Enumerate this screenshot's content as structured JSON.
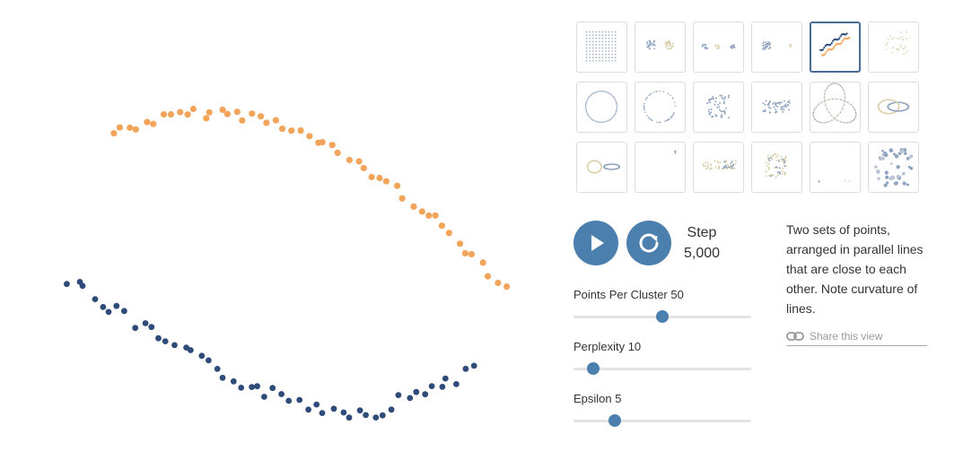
{
  "controls": {
    "play_icon": "play-icon",
    "reset_icon": "refresh-icon",
    "step_label": "Step",
    "step_value": "5,000",
    "button_color": "#4b7fae"
  },
  "sliders": [
    {
      "key": "points",
      "label": "Points Per Cluster 50",
      "fraction": 0.5
    },
    {
      "key": "perplexity",
      "label": "Perplexity 10",
      "fraction": 0.11
    },
    {
      "key": "epsilon",
      "label": "Epsilon 5",
      "fraction": 0.23
    }
  ],
  "description": "Two sets of points, arranged in parallel lines that are close to each other. Note curvature of lines.",
  "share": {
    "label": "Share this view",
    "icon": "link-icon"
  },
  "thumbnails": [
    {
      "name": "grid",
      "selected": false
    },
    {
      "name": "two-clusters",
      "selected": false
    },
    {
      "name": "three-clusters",
      "selected": false
    },
    {
      "name": "two-different-sized-clusters",
      "selected": false
    },
    {
      "name": "parallel-lines",
      "selected": true
    },
    {
      "name": "random-walk-cloud",
      "selected": false
    },
    {
      "name": "circle-evenly-spaced",
      "selected": false
    },
    {
      "name": "circle-randomly-spaced",
      "selected": false
    },
    {
      "name": "gaussian-cloud-small",
      "selected": false
    },
    {
      "name": "gaussian-cloud-elongated",
      "selected": false
    },
    {
      "name": "trefoil-knot",
      "selected": false
    },
    {
      "name": "linked-rings",
      "selected": false
    },
    {
      "name": "unlinked-rings",
      "selected": false
    },
    {
      "name": "orthogonal-steps",
      "selected": false
    },
    {
      "name": "random-walk",
      "selected": false
    },
    {
      "name": "random-jump",
      "selected": false
    },
    {
      "name": "equally-spaced",
      "selected": false
    },
    {
      "name": "sparse-clusters",
      "selected": false
    }
  ],
  "colors": {
    "orange": "#f2a45a",
    "navy": "#2f4b7a",
    "thumb_border": "#dcdcdc",
    "selected_border": "#4a6c92"
  }
}
